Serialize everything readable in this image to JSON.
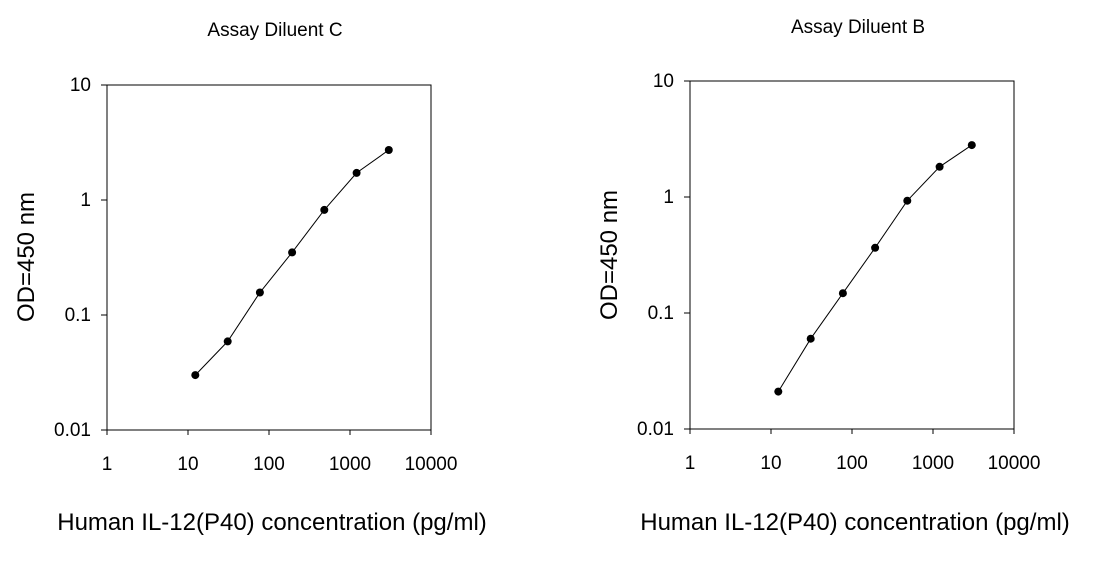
{
  "chart_data": [
    {
      "type": "line",
      "title": "Assay Diluent C",
      "xlabel": "Human IL-12(P40) concentration (pg/ml)",
      "ylabel": "OD=450 nm",
      "x_scale": "log",
      "y_scale": "log",
      "xlim": [
        1,
        10000
      ],
      "ylim": [
        0.01,
        10
      ],
      "x_ticks": [
        "1",
        "10",
        "100",
        "1000",
        "10000"
      ],
      "y_ticks": [
        "10",
        "1",
        "0.1",
        "0.01"
      ],
      "grid": false,
      "marker": "filled-circle",
      "series": [
        {
          "x": [
            12.3,
            30.9,
            77.2,
            193,
            482,
            1205,
            3013
          ],
          "y": [
            0.03,
            0.059,
            0.157,
            0.35,
            0.82,
            1.72,
            2.72
          ]
        }
      ]
    },
    {
      "type": "line",
      "title": "Assay Diluent B",
      "xlabel": "Human IL-12(P40) concentration (pg/ml)",
      "ylabel": "OD=450 nm",
      "x_scale": "log",
      "y_scale": "log",
      "xlim": [
        1,
        10000
      ],
      "ylim": [
        0.01,
        10
      ],
      "x_ticks": [
        "1",
        "10",
        "100",
        "1000",
        "10000"
      ],
      "y_ticks": [
        "10",
        "1",
        "0.1",
        "0.01"
      ],
      "grid": false,
      "marker": "filled-circle",
      "series": [
        {
          "x": [
            12.3,
            30.9,
            77.2,
            193,
            482,
            1205,
            3013
          ],
          "y": [
            0.021,
            0.06,
            0.148,
            0.365,
            0.93,
            1.82,
            2.8
          ]
        }
      ]
    }
  ]
}
